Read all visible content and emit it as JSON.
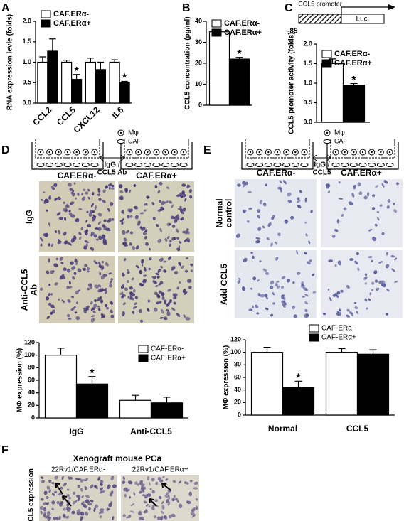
{
  "panel_letters": [
    "A",
    "B",
    "C",
    "D",
    "E",
    "F"
  ],
  "chart_data": [
    {
      "type": "bar",
      "y_label": "RNA expression levle (folds)",
      "categories": [
        "CCL2",
        "CCL5",
        "CXCL12",
        "IL6"
      ],
      "series": [
        {
          "name": "CAF.ERα-",
          "color": "#ffffff",
          "values": [
            1.0,
            1.0,
            1.0,
            1.0
          ],
          "errors": [
            0.13,
            0.05,
            0.1,
            0.06
          ]
        },
        {
          "name": "CAF.ERα+",
          "color": "#000000",
          "values": [
            1.27,
            0.58,
            0.82,
            0.5
          ],
          "errors": [
            0.3,
            0.12,
            0.18,
            0.03
          ]
        }
      ],
      "ylim": [
        0,
        2.0
      ],
      "yticks": [
        {
          "value": 0,
          "label": "0.0"
        },
        0.5,
        {
          "value": 1.0,
          "label": "1.0"
        },
        1.5,
        {
          "value": 2.0,
          "label": "2.0"
        }
      ],
      "legend": "upper left",
      "annotations": [
        {
          "text": "*",
          "category": "CCL5",
          "series": "CAF.ERα+"
        },
        {
          "text": "*",
          "category": "IL6",
          "series": "CAF.ERα+"
        }
      ]
    },
    {
      "type": "bar",
      "y_label": "CCL5 concentration (pg/ml)",
      "categories": [
        null
      ],
      "series": [
        {
          "name": "CAF.ERα-",
          "color": "#ffffff",
          "values": [
            35
          ],
          "errors": [
            0.4
          ]
        },
        {
          "name": "CAF.ERα+",
          "color": "#000000",
          "values": [
            22
          ],
          "errors": [
            0.8
          ]
        }
      ],
      "ylim": [
        0,
        40
      ],
      "yticks": [
        0,
        10,
        20,
        30,
        40
      ],
      "legend": "upper left",
      "annotations": [
        {
          "text": "*",
          "category": null,
          "series": "CAF.ERα+"
        }
      ]
    },
    {
      "type": "bar",
      "y_label": "CCL5 promoter activity (folds)",
      "categories": [
        null
      ],
      "series": [
        {
          "name": "CAF.ERα-",
          "color": "#ffffff",
          "values": [
            1.5
          ],
          "errors": [
            0.12
          ]
        },
        {
          "name": "CAF.ERα+",
          "color": "#000000",
          "values": [
            0.95
          ],
          "errors": [
            0.04
          ]
        }
      ],
      "ylim": [
        0,
        2.0
      ],
      "yticks": [
        {
          "value": 0,
          "label": "0.0"
        },
        0.5,
        {
          "value": 1.0,
          "label": "1.0"
        },
        1.5,
        {
          "value": 2.0,
          "label": "2.0"
        }
      ],
      "legend": "upper left",
      "annotations": [
        {
          "text": "*",
          "category": null,
          "series": "CAF.ERα+"
        }
      ]
    },
    {
      "type": "bar",
      "y_label": "MΦ expression (%)",
      "categories": [
        "IgG",
        "Anti-CCL5"
      ],
      "series": [
        {
          "name": "CAF-ERα-",
          "color": "#ffffff",
          "values": [
            100,
            28
          ],
          "errors": [
            11,
            8
          ]
        },
        {
          "name": "CAF-ERα+",
          "color": "#000000",
          "values": [
            54,
            24
          ],
          "errors": [
            12,
            9
          ]
        }
      ],
      "ylim": [
        0,
        120
      ],
      "yticks": [
        0,
        20,
        40,
        60,
        80,
        100,
        120
      ],
      "legend": "upper right",
      "annotations": [
        {
          "text": "*",
          "category": "IgG",
          "series": "CAF-ERα+"
        }
      ]
    },
    {
      "type": "bar",
      "y_label": "MΦ expression (%)",
      "categories": [
        "Normal",
        "CCL5"
      ],
      "series": [
        {
          "name": "CAF-ERa-",
          "color": "#ffffff",
          "values": [
            100,
            100
          ],
          "errors": [
            8,
            6
          ]
        },
        {
          "name": "CAF-ERα+",
          "color": "#000000",
          "values": [
            44,
            97
          ],
          "errors": [
            10,
            7
          ]
        }
      ],
      "ylim": [
        0,
        120
      ],
      "yticks": [
        0,
        20,
        40,
        60,
        80,
        100,
        120
      ],
      "legend": "upper center",
      "annotations": [
        {
          "text": "*",
          "category": "Normal",
          "series": "CAF-ERα+"
        }
      ]
    }
  ],
  "panel_c_diagram": {
    "label": "CCL5 promoter",
    "position": "-85",
    "reporter": "Luc."
  },
  "panel_d": {
    "diagram_legend": [
      "Mφ",
      "CAF"
    ],
    "treatment": [
      "IgG /",
      "CCL5 Ab"
    ],
    "columns": [
      "CAF.ERα-",
      "CAF.ERα+"
    ],
    "rows": [
      [
        "IgG"
      ],
      [
        "Anti-CCL5",
        "Ab"
      ]
    ]
  },
  "panel_e": {
    "diagram_legend": [
      "Mφ",
      "CAF"
    ],
    "treatment": [
      "IgG /",
      "CCL5"
    ],
    "columns": [
      "CAF.ERα-",
      "CAF.ERα+"
    ],
    "rows": [
      [
        "Normal",
        "control"
      ],
      [
        "Add CCL5"
      ]
    ]
  },
  "panel_f": {
    "title": "Xenograft mouse PCa",
    "columns": [
      "22Rv1/CAF.ERα-",
      "22Rv1/CAF.ERα+"
    ],
    "row": "CCL5 expression"
  }
}
